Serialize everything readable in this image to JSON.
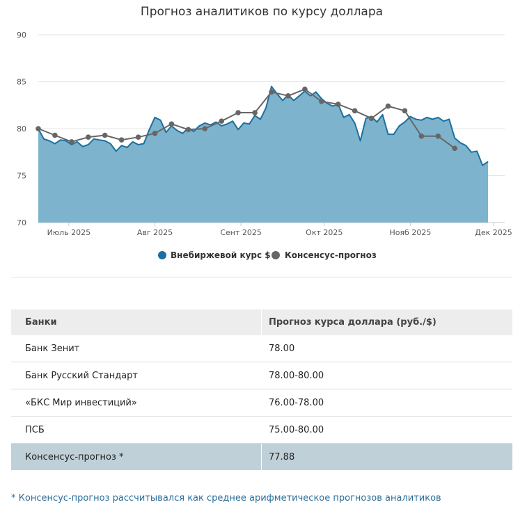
{
  "chart_data": {
    "type": "area",
    "title": "Прогноз аналитиков по курсу доллара",
    "xlabel": "",
    "ylabel": "",
    "ylim": [
      70,
      90
    ],
    "yticks": [
      "70",
      "75",
      "80",
      "85",
      "90"
    ],
    "xticks": [
      {
        "date": "2025-07-01",
        "label": "Июль 2025"
      },
      {
        "date": "2025-08-01",
        "label": "Авг 2025"
      },
      {
        "date": "2025-09-01",
        "label": "Сент 2025"
      },
      {
        "date": "2025-10-01",
        "label": "Окт 2025"
      },
      {
        "date": "2025-11-01",
        "label": "Нояб 2025"
      },
      {
        "date": "2025-12-01",
        "label": "Дек 2025"
      }
    ],
    "grid": true,
    "legend_placement": "bottom",
    "series": [
      {
        "name": "Внебиржевой курс $",
        "type": "area",
        "color": "#1d6fa0",
        "fill": "#7db3cc",
        "points": [
          [
            "2025-06-20",
            80.0
          ],
          [
            "2025-06-22",
            78.9
          ],
          [
            "2025-06-24",
            78.7
          ],
          [
            "2025-06-26",
            78.4
          ],
          [
            "2025-06-28",
            78.8
          ],
          [
            "2025-06-30",
            78.7
          ],
          [
            "2025-07-02",
            78.3
          ],
          [
            "2025-07-04",
            78.6
          ],
          [
            "2025-07-06",
            78.1
          ],
          [
            "2025-07-08",
            78.3
          ],
          [
            "2025-07-10",
            78.9
          ],
          [
            "2025-07-12",
            78.8
          ],
          [
            "2025-07-14",
            78.7
          ],
          [
            "2025-07-16",
            78.4
          ],
          [
            "2025-07-18",
            77.6
          ],
          [
            "2025-07-20",
            78.2
          ],
          [
            "2025-07-22",
            78.0
          ],
          [
            "2025-07-24",
            78.6
          ],
          [
            "2025-07-26",
            78.3
          ],
          [
            "2025-07-28",
            78.4
          ],
          [
            "2025-07-30",
            79.9
          ],
          [
            "2025-08-01",
            81.2
          ],
          [
            "2025-08-03",
            80.9
          ],
          [
            "2025-08-05",
            79.6
          ],
          [
            "2025-08-07",
            80.3
          ],
          [
            "2025-08-09",
            79.8
          ],
          [
            "2025-08-11",
            79.5
          ],
          [
            "2025-08-13",
            80.1
          ],
          [
            "2025-08-15",
            79.7
          ],
          [
            "2025-08-17",
            80.3
          ],
          [
            "2025-08-19",
            80.6
          ],
          [
            "2025-08-21",
            80.4
          ],
          [
            "2025-08-23",
            80.7
          ],
          [
            "2025-08-25",
            80.3
          ],
          [
            "2025-08-27",
            80.5
          ],
          [
            "2025-08-29",
            80.8
          ],
          [
            "2025-08-31",
            79.9
          ],
          [
            "2025-09-02",
            80.6
          ],
          [
            "2025-09-04",
            80.5
          ],
          [
            "2025-09-06",
            81.4
          ],
          [
            "2025-09-08",
            81.0
          ],
          [
            "2025-09-10",
            82.2
          ],
          [
            "2025-09-12",
            84.5
          ],
          [
            "2025-09-14",
            83.7
          ],
          [
            "2025-09-16",
            83.0
          ],
          [
            "2025-09-18",
            83.6
          ],
          [
            "2025-09-20",
            83.0
          ],
          [
            "2025-09-22",
            83.5
          ],
          [
            "2025-09-24",
            84.0
          ],
          [
            "2025-09-26",
            83.5
          ],
          [
            "2025-09-28",
            83.9
          ],
          [
            "2025-09-30",
            83.2
          ],
          [
            "2025-10-02",
            82.7
          ],
          [
            "2025-10-04",
            82.4
          ],
          [
            "2025-10-06",
            82.6
          ],
          [
            "2025-10-08",
            81.2
          ],
          [
            "2025-10-10",
            81.5
          ],
          [
            "2025-10-12",
            80.6
          ],
          [
            "2025-10-14",
            78.7
          ],
          [
            "2025-10-16",
            81.1
          ],
          [
            "2025-10-18",
            81.3
          ],
          [
            "2025-10-20",
            80.7
          ],
          [
            "2025-10-22",
            81.5
          ],
          [
            "2025-10-24",
            79.4
          ],
          [
            "2025-10-26",
            79.4
          ],
          [
            "2025-10-28",
            80.3
          ],
          [
            "2025-10-30",
            80.7
          ],
          [
            "2025-11-01",
            81.3
          ],
          [
            "2025-11-03",
            81.0
          ],
          [
            "2025-11-05",
            80.9
          ],
          [
            "2025-11-07",
            81.2
          ],
          [
            "2025-11-09",
            81.0
          ],
          [
            "2025-11-11",
            81.2
          ],
          [
            "2025-11-13",
            80.8
          ],
          [
            "2025-11-15",
            81.0
          ],
          [
            "2025-11-17",
            79.0
          ],
          [
            "2025-11-19",
            78.5
          ],
          [
            "2025-11-21",
            78.2
          ],
          [
            "2025-11-23",
            77.5
          ],
          [
            "2025-11-25",
            77.6
          ],
          [
            "2025-11-27",
            76.1
          ],
          [
            "2025-11-29",
            76.5
          ]
        ]
      },
      {
        "name": "Консенсус-прогноз",
        "type": "line",
        "color": "#666666",
        "points": [
          [
            "2025-06-20",
            80.0
          ],
          [
            "2025-06-26",
            79.3
          ],
          [
            "2025-07-02",
            78.6
          ],
          [
            "2025-07-08",
            79.1
          ],
          [
            "2025-07-14",
            79.3
          ],
          [
            "2025-07-20",
            78.8
          ],
          [
            "2025-07-26",
            79.1
          ],
          [
            "2025-08-01",
            79.5
          ],
          [
            "2025-08-07",
            80.5
          ],
          [
            "2025-08-13",
            79.9
          ],
          [
            "2025-08-19",
            80.0
          ],
          [
            "2025-08-25",
            80.8
          ],
          [
            "2025-08-31",
            81.7
          ],
          [
            "2025-09-06",
            81.7
          ],
          [
            "2025-09-12",
            83.9
          ],
          [
            "2025-09-18",
            83.5
          ],
          [
            "2025-09-24",
            84.2
          ],
          [
            "2025-09-30",
            82.9
          ],
          [
            "2025-10-06",
            82.6
          ],
          [
            "2025-10-12",
            81.9
          ],
          [
            "2025-10-18",
            81.1
          ],
          [
            "2025-10-24",
            82.4
          ],
          [
            "2025-10-30",
            81.9
          ],
          [
            "2025-11-05",
            79.2
          ],
          [
            "2025-11-11",
            79.2
          ],
          [
            "2025-11-17",
            77.9
          ]
        ]
      }
    ]
  },
  "table": {
    "headers": [
      "Банки",
      "Прогноз курса доллара (руб./$)"
    ],
    "rows": [
      {
        "bank": "Банк Зенит",
        "forecast": "78.00"
      },
      {
        "bank": "Банк Русский Стандарт",
        "forecast": "78.00-80.00"
      },
      {
        "bank": "«БКС Мир инвестиций»",
        "forecast": "76.00-78.00"
      },
      {
        "bank": "ПСБ",
        "forecast": "75.00-80.00"
      }
    ],
    "consensus": {
      "bank": "Консенсус-прогноз *",
      "forecast": "77.88"
    }
  },
  "footnote": "* Консенсус-прогноз рассчитывался как среднее арифметическое прогнозов аналитиков"
}
